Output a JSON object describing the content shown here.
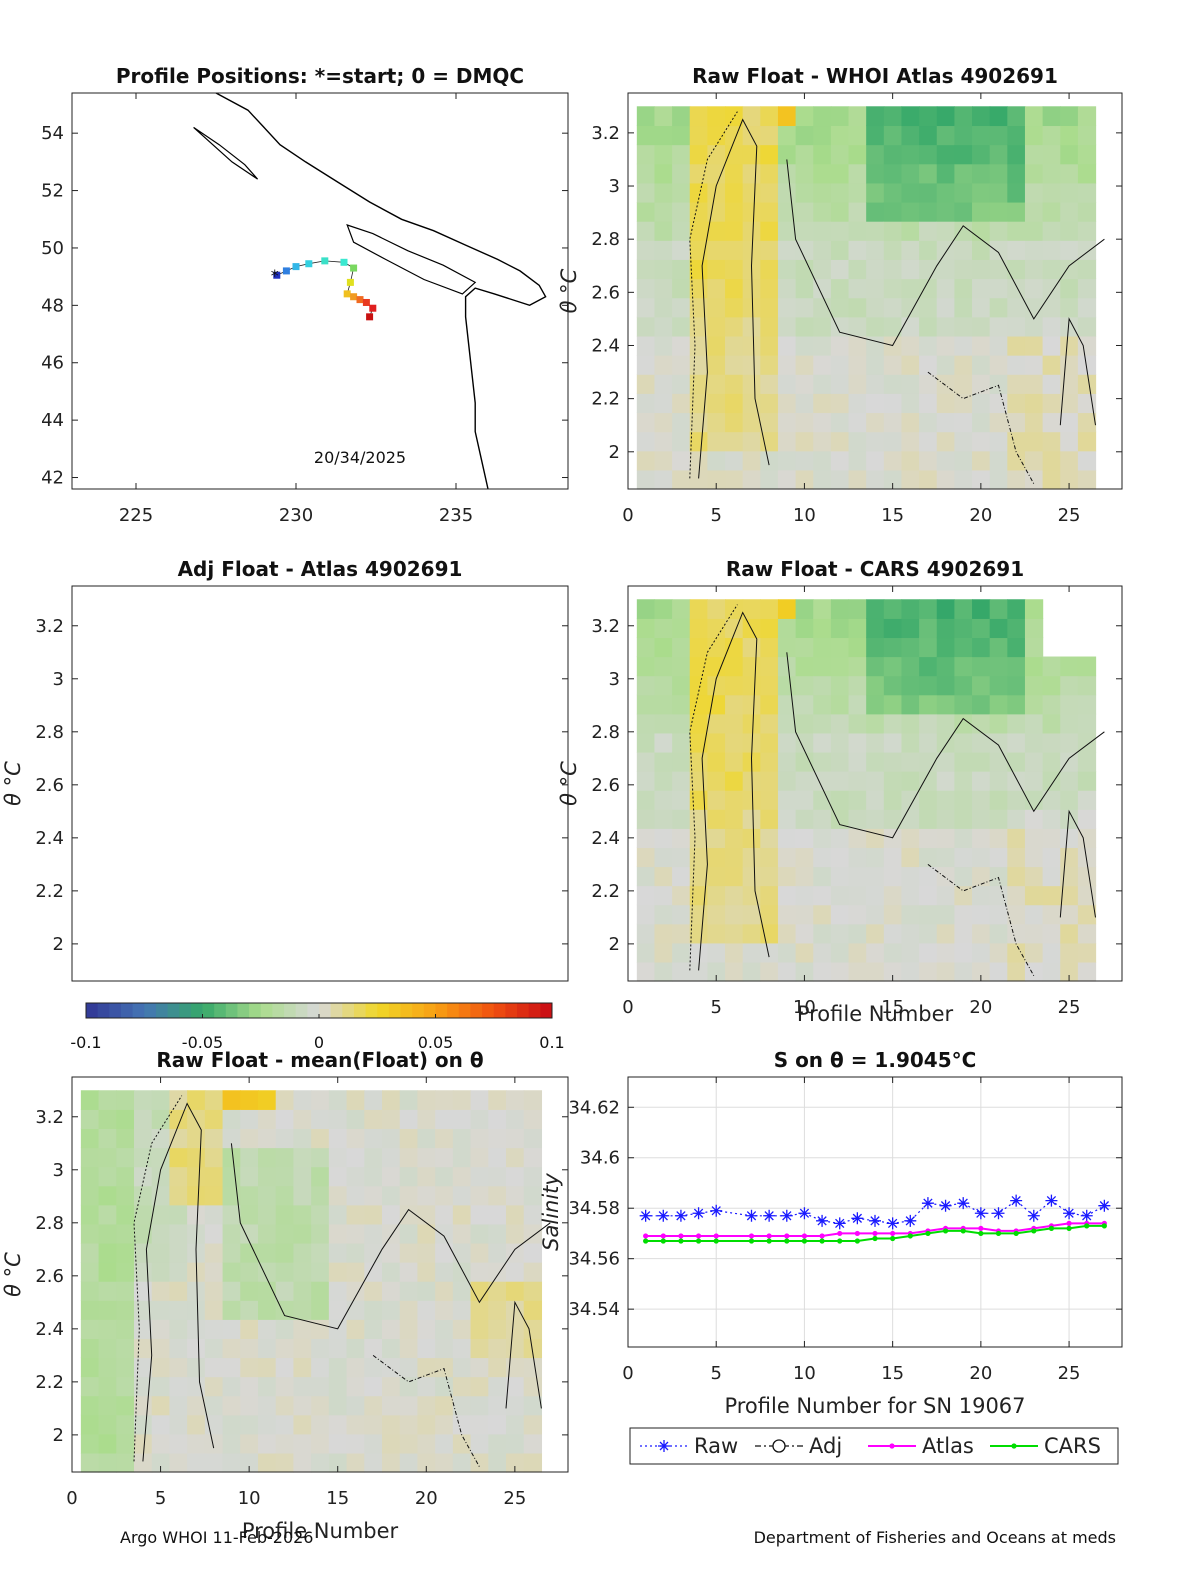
{
  "footer": {
    "left": "Argo WHOI 11-Feb-2026",
    "right": "Department of Fisheries and Oceans at meds"
  },
  "chart_data": [
    {
      "panel": "map",
      "type": "scatter",
      "title": "Profile Positions: *=start; 0 = DMQC",
      "annotation": "20/34/2025",
      "xlim": [
        223,
        238.5
      ],
      "ylim": [
        41.6,
        55.4
      ],
      "xticks": [
        225,
        230,
        235
      ],
      "yticks": [
        42,
        44,
        46,
        48,
        50,
        52,
        54
      ],
      "track_lon": [
        229.4,
        229.7,
        230.0,
        230.4,
        230.9,
        231.5,
        231.8,
        231.7,
        231.6,
        231.8,
        232.0,
        232.2,
        232.4,
        232.3
      ],
      "track_lat": [
        49.05,
        49.2,
        49.35,
        49.45,
        49.55,
        49.5,
        49.3,
        48.8,
        48.4,
        48.3,
        48.2,
        48.1,
        47.9,
        47.6
      ],
      "track_colors": [
        "#1f2fbf",
        "#2f7fe0",
        "#33b7e8",
        "#33d0e0",
        "#3ae0c8",
        "#3be8d0",
        "#7ad860",
        "#e0e020",
        "#f0c020",
        "#f09a20",
        "#f06a20",
        "#e83a20",
        "#e02020",
        "#c81010"
      ]
    },
    {
      "panel": "raw-atlas",
      "type": "heatmap",
      "title": "Raw Float - WHOI Atlas  4902691",
      "xlim": [
        0,
        28
      ],
      "ylim": [
        1.86,
        3.35
      ],
      "xticks": [
        0,
        5,
        10,
        15,
        20,
        25
      ],
      "yticks": [
        2,
        2.2,
        2.4,
        2.6,
        2.8,
        3,
        3.2
      ],
      "yticklabels": [
        "2",
        "2.2",
        "2.4",
        "2.6",
        "2.8",
        "3",
        "3.2"
      ],
      "ylabel": "θ °C",
      "grid_seed": 3
    },
    {
      "panel": "adj-atlas",
      "type": "heatmap",
      "title": "Adj Float - Atlas  4902691",
      "xlim": [
        0,
        28
      ],
      "ylim": [
        1.86,
        3.35
      ],
      "yticks": [
        2,
        2.2,
        2.4,
        2.6,
        2.8,
        3,
        3.2
      ],
      "yticklabels": [
        "2",
        "2.2",
        "2.4",
        "2.6",
        "2.8",
        "3",
        "3.2"
      ],
      "ylabel": "θ °C"
    },
    {
      "panel": "raw-cars",
      "type": "heatmap",
      "title": "Raw Float - CARS  4902691",
      "xlim": [
        0,
        28
      ],
      "ylim": [
        1.86,
        3.35
      ],
      "xticks": [
        0,
        5,
        10,
        15,
        20,
        25
      ],
      "yticks": [
        2,
        2.2,
        2.4,
        2.6,
        2.8,
        3,
        3.2
      ],
      "yticklabels": [
        "2",
        "2.2",
        "2.4",
        "2.6",
        "2.8",
        "3",
        "3.2"
      ],
      "xlabel": "Profile Number",
      "ylabel": "θ °C"
    },
    {
      "panel": "colorbar",
      "type": "colorbar",
      "range": [
        -0.1,
        0.1
      ],
      "ticklabels": [
        "-0.1",
        "-0.05",
        "0",
        "0.05",
        "0.1"
      ],
      "ticks": [
        -0.1,
        -0.05,
        0,
        0.05,
        0.1
      ]
    },
    {
      "panel": "raw-mean",
      "type": "heatmap",
      "title": "Raw Float - mean(Float) on θ",
      "xlim": [
        0,
        28
      ],
      "ylim": [
        1.86,
        3.35
      ],
      "xticks": [
        0,
        5,
        10,
        15,
        20,
        25
      ],
      "yticks": [
        2,
        2.2,
        2.4,
        2.6,
        2.8,
        3,
        3.2
      ],
      "yticklabels": [
        "2",
        "2.2",
        "2.4",
        "2.6",
        "2.8",
        "3",
        "3.2"
      ],
      "xlabel": "Profile Number",
      "ylabel": "θ °C"
    },
    {
      "panel": "salinity",
      "type": "line",
      "title": "S on θ = 1.9045°C",
      "xlabel": "Profile Number for SN 19067",
      "ylabel": "Salinity",
      "xlim": [
        0,
        28
      ],
      "ylim": [
        34.525,
        34.632
      ],
      "xticks": [
        0,
        5,
        10,
        15,
        20,
        25
      ],
      "yticks": [
        34.54,
        34.56,
        34.58,
        34.6,
        34.62
      ],
      "yticklabels": [
        "34.54",
        "34.56",
        "34.58",
        "34.6",
        "34.62"
      ],
      "grid": true,
      "legend_position": "bottom-outside",
      "x_raw": [
        1,
        2,
        3,
        4,
        5,
        7,
        8,
        9,
        10,
        11,
        12,
        13,
        14,
        15,
        16,
        17,
        18,
        19,
        20,
        21,
        22,
        23,
        24,
        25,
        26,
        27
      ],
      "series": [
        {
          "name": "Raw",
          "color": "#1a1aff",
          "style": "dotted-star",
          "values": [
            34.577,
            34.577,
            34.577,
            34.578,
            34.579,
            34.577,
            34.577,
            34.577,
            34.578,
            34.575,
            34.574,
            34.576,
            34.575,
            34.574,
            34.575,
            34.582,
            34.581,
            34.582,
            34.578,
            34.578,
            34.583,
            34.577,
            34.583,
            34.578,
            34.577,
            34.581
          ]
        },
        {
          "name": "Adj",
          "color": "#111111",
          "style": "dashdot-circle",
          "values": []
        },
        {
          "name": "Atlas",
          "color": "#ff00ff",
          "style": "solid-dot",
          "values": [
            34.569,
            34.569,
            34.569,
            34.569,
            34.569,
            34.569,
            34.569,
            34.569,
            34.569,
            34.569,
            34.57,
            34.57,
            34.57,
            34.57,
            34.57,
            34.571,
            34.572,
            34.572,
            34.572,
            34.571,
            34.571,
            34.572,
            34.573,
            34.574,
            34.574,
            34.574
          ]
        },
        {
          "name": "CARS",
          "color": "#00dd00",
          "style": "solid-dot",
          "values": [
            34.567,
            34.567,
            34.567,
            34.567,
            34.567,
            34.567,
            34.567,
            34.567,
            34.567,
            34.567,
            34.567,
            34.567,
            34.568,
            34.568,
            34.569,
            34.57,
            34.571,
            34.571,
            34.57,
            34.57,
            34.57,
            34.571,
            34.572,
            34.572,
            34.573,
            34.573
          ]
        }
      ]
    }
  ]
}
